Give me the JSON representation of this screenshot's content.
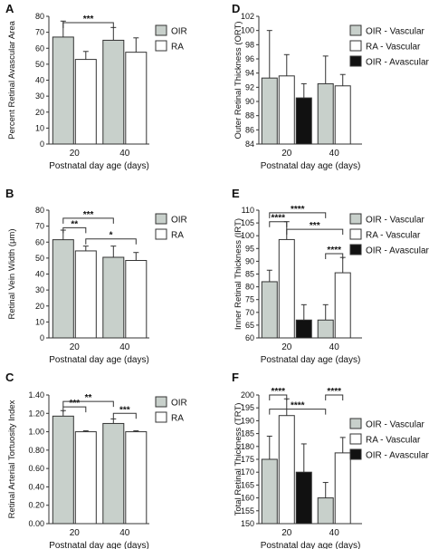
{
  "chart_data": [
    {
      "panel": "A",
      "type": "bar",
      "ylabel": "Percent Retinal Avascular Area",
      "xlabel": "Postnatal day age (days)",
      "categories": [
        "20",
        "40"
      ],
      "ylim": [
        0,
        80
      ],
      "yticks": [
        0,
        10,
        20,
        30,
        40,
        50,
        60,
        70,
        80
      ],
      "series": [
        {
          "name": "OIR",
          "values": [
            67,
            65
          ],
          "errors": [
            10,
            8
          ],
          "color": "#c8d0cb"
        },
        {
          "name": "RA",
          "values": [
            53,
            57.5
          ],
          "errors": [
            5,
            9
          ],
          "color": "#ffffff"
        }
      ],
      "legend": "top-right",
      "significance": [
        {
          "label": "***",
          "from": [
            0,
            0
          ],
          "to": [
            1,
            0
          ],
          "y": 76
        }
      ]
    },
    {
      "panel": "B",
      "type": "bar",
      "ylabel": "Retinal Vein Width (μm)",
      "xlabel": "Postnatal day age (days)",
      "categories": [
        "20",
        "40"
      ],
      "ylim": [
        0,
        80
      ],
      "yticks": [
        0,
        10,
        20,
        30,
        40,
        50,
        60,
        70,
        80
      ],
      "series": [
        {
          "name": "OIR",
          "values": [
            61.5,
            50.5
          ],
          "errors": [
            6,
            7
          ],
          "color": "#c8d0cb"
        },
        {
          "name": "RA",
          "values": [
            54.5,
            48.5
          ],
          "errors": [
            3,
            5
          ],
          "color": "#ffffff"
        }
      ],
      "legend": "top-right",
      "significance": [
        {
          "label": "**",
          "from": [
            0,
            0
          ],
          "to": [
            0,
            1
          ],
          "y": 69
        },
        {
          "label": "***",
          "from": [
            0,
            0
          ],
          "to": [
            1,
            0
          ],
          "y": 75
        },
        {
          "label": "*",
          "from": [
            0,
            1
          ],
          "to": [
            1,
            1
          ],
          "y": 62
        }
      ]
    },
    {
      "panel": "C",
      "type": "bar",
      "ylabel": "Retinal Arterial Tortuosity Index",
      "xlabel": "Postnatal day age (days)",
      "categories": [
        "20",
        "40"
      ],
      "ylim": [
        0,
        1.4
      ],
      "yticks": [
        0,
        0.2,
        0.4,
        0.6,
        0.8,
        1.0,
        1.2,
        1.4
      ],
      "ytick_labels": [
        "0.00",
        "0.20",
        "0.40",
        "0.60",
        "0.80",
        "1.00",
        "1.20",
        "1.40"
      ],
      "series": [
        {
          "name": "OIR",
          "values": [
            1.17,
            1.09
          ],
          "errors": [
            0.06,
            0.05
          ],
          "color": "#c8d0cb"
        },
        {
          "name": "RA",
          "values": [
            1.0,
            1.0
          ],
          "errors": [
            0.01,
            0.01
          ],
          "color": "#ffffff"
        }
      ],
      "legend": "top-right",
      "significance": [
        {
          "label": "***",
          "from": [
            0,
            0
          ],
          "to": [
            0,
            1
          ],
          "y": 1.27
        },
        {
          "label": "**",
          "from": [
            0,
            0
          ],
          "to": [
            1,
            0
          ],
          "y": 1.33
        },
        {
          "label": "***",
          "from": [
            1,
            0
          ],
          "to": [
            1,
            1
          ],
          "y": 1.2
        }
      ]
    },
    {
      "panel": "D",
      "type": "bar",
      "ylabel": "Outer Retinal Thickness (ORT)",
      "xlabel": "Postnatal day age (days)",
      "categories": [
        "20",
        "40"
      ],
      "ylim": [
        84,
        102
      ],
      "yticks": [
        84,
        86,
        88,
        90,
        92,
        94,
        96,
        98,
        100,
        102
      ],
      "series": [
        {
          "name": "OIR - Vascular",
          "values": [
            93.3,
            92.5
          ],
          "errors": [
            6.7,
            3.9
          ],
          "color": "#c8d0cb"
        },
        {
          "name": "RA - Vascular",
          "values": [
            93.6,
            92.2
          ],
          "errors": [
            3,
            1.6
          ],
          "color": "#ffffff"
        },
        {
          "name": "OIR - Avascular",
          "values": [
            90.5,
            null
          ],
          "errors": [
            2,
            null
          ],
          "color": "#111111"
        }
      ],
      "legend": "top-right",
      "significance": []
    },
    {
      "panel": "E",
      "type": "bar",
      "ylabel": "Inner Retinal Thickness (IRT)",
      "xlabel": "Postnatal day age (days)",
      "categories": [
        "20",
        "40"
      ],
      "ylim": [
        60,
        110
      ],
      "yticks": [
        60,
        65,
        70,
        75,
        80,
        85,
        90,
        95,
        100,
        105,
        110
      ],
      "series": [
        {
          "name": "OIR - Vascular",
          "values": [
            82,
            67
          ],
          "errors": [
            4.5,
            6
          ],
          "color": "#c8d0cb"
        },
        {
          "name": "RA - Vascular",
          "values": [
            98.5,
            85.5
          ],
          "errors": [
            7,
            6
          ],
          "color": "#ffffff"
        },
        {
          "name": "OIR - Avascular",
          "values": [
            67,
            null
          ],
          "errors": [
            6,
            null
          ],
          "color": "#111111"
        }
      ],
      "legend": "top-right",
      "significance": [
        {
          "label": "****",
          "from": [
            0,
            0
          ],
          "to": [
            0,
            1
          ],
          "y": 105.5
        },
        {
          "label": "****",
          "from": [
            0,
            0
          ],
          "to": [
            1,
            0
          ],
          "y": 109
        },
        {
          "label": "***",
          "from": [
            0,
            1
          ],
          "to": [
            1,
            1
          ],
          "y": 102.5
        },
        {
          "label": "****",
          "from": [
            1,
            0
          ],
          "to": [
            1,
            1
          ],
          "y": 93
        }
      ]
    },
    {
      "panel": "F",
      "type": "bar",
      "ylabel": "Total Retinal Thickness (TRT)",
      "xlabel": "Postnatal day age (days)",
      "categories": [
        "20",
        "40"
      ],
      "ylim": [
        150,
        200
      ],
      "yticks": [
        150,
        155,
        160,
        165,
        170,
        175,
        180,
        185,
        190,
        195,
        200
      ],
      "series": [
        {
          "name": "OIR - Vascular",
          "values": [
            175,
            160
          ],
          "errors": [
            9,
            6
          ],
          "color": "#c8d0cb"
        },
        {
          "name": "RA - Vascular",
          "values": [
            192,
            177.5
          ],
          "errors": [
            6.5,
            6
          ],
          "color": "#ffffff"
        },
        {
          "name": "OIR - Avascular",
          "values": [
            170,
            null
          ],
          "errors": [
            11,
            null
          ],
          "color": "#111111"
        }
      ],
      "legend": "top-right",
      "significance": [
        {
          "label": "****",
          "from": [
            0,
            0
          ],
          "to": [
            0,
            1
          ],
          "y": 200
        },
        {
          "label": "****",
          "from": [
            0,
            0
          ],
          "to": [
            1,
            0
          ],
          "y": 194.5
        },
        {
          "label": "****",
          "from": [
            1,
            0
          ],
          "to": [
            1,
            1
          ],
          "y": 200
        }
      ]
    }
  ]
}
